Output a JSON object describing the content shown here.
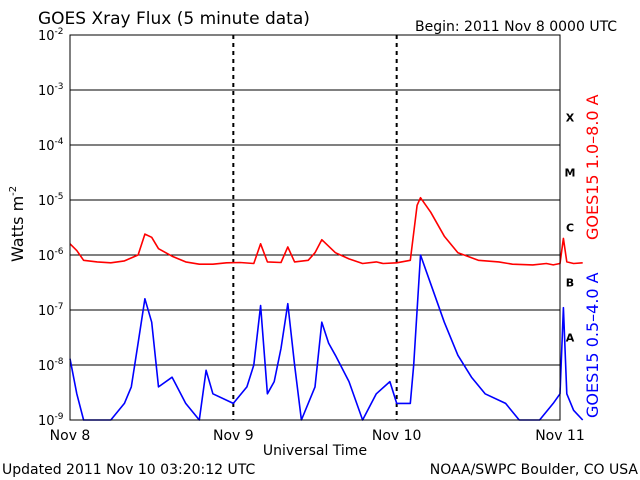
{
  "chart_data": {
    "type": "line",
    "title": "GOES Xray Flux (5 minute data)",
    "begin_label": "Begin:  2011 Nov 8 0000 UTC",
    "ylabel": "Watts m",
    "ylabel_exponent": "-2",
    "xlabel": "Universal Time",
    "y_scale": "log",
    "ylim": [
      1e-09,
      0.01
    ],
    "y_ticks": [
      {
        "mantissa": "10",
        "exponent": "-2",
        "value": 0.01
      },
      {
        "mantissa": "10",
        "exponent": "-3",
        "value": 0.001
      },
      {
        "mantissa": "10",
        "exponent": "-4",
        "value": 0.0001
      },
      {
        "mantissa": "10",
        "exponent": "-5",
        "value": 1e-05
      },
      {
        "mantissa": "10",
        "exponent": "-6",
        "value": 1e-06
      },
      {
        "mantissa": "10",
        "exponent": "-7",
        "value": 1e-07
      },
      {
        "mantissa": "10",
        "exponent": "-8",
        "value": 1e-08
      },
      {
        "mantissa": "10",
        "exponent": "-9",
        "value": 1e-09
      }
    ],
    "xlim": [
      "2011-11-08 00:00",
      "2011-11-11 00:00"
    ],
    "x_ticks": [
      {
        "label": "Nov 8",
        "date": "2011-11-08 00:00"
      },
      {
        "label": "Nov 9",
        "date": "2011-11-09 00:00"
      },
      {
        "label": "Nov 10",
        "date": "2011-11-10 00:00"
      },
      {
        "label": "Nov 11",
        "date": "2011-11-11 00:00"
      }
    ],
    "flare_classes": [
      {
        "label": "X",
        "value": 0.000316
      },
      {
        "label": "M",
        "value": 3.16e-05
      },
      {
        "label": "C",
        "value": 3.16e-06
      },
      {
        "label": "B",
        "value": 3.16e-07
      },
      {
        "label": "A",
        "value": 3.16e-08
      }
    ],
    "series": [
      {
        "name": "GOES15 1.0–8.0 A",
        "color": "#ff0000",
        "points": [
          [
            "2011-11-08 00:00",
            1.6e-06
          ],
          [
            "2011-11-08 01:00",
            1.2e-06
          ],
          [
            "2011-11-08 02:00",
            8e-07
          ],
          [
            "2011-11-08 04:00",
            7.5e-07
          ],
          [
            "2011-11-08 06:00",
            7.2e-07
          ],
          [
            "2011-11-08 08:00",
            7.8e-07
          ],
          [
            "2011-11-08 10:00",
            1e-06
          ],
          [
            "2011-11-08 11:00",
            2.4e-06
          ],
          [
            "2011-11-08 12:00",
            2.1e-06
          ],
          [
            "2011-11-08 13:00",
            1.3e-06
          ],
          [
            "2011-11-08 15:00",
            9.5e-07
          ],
          [
            "2011-11-08 17:00",
            7.5e-07
          ],
          [
            "2011-11-08 19:00",
            6.8e-07
          ],
          [
            "2011-11-08 21:00",
            6.8e-07
          ],
          [
            "2011-11-08 23:00",
            7.2e-07
          ],
          [
            "2011-11-09 01:00",
            7.3e-07
          ],
          [
            "2011-11-09 03:00",
            7e-07
          ],
          [
            "2011-11-09 04:00",
            1.6e-06
          ],
          [
            "2011-11-09 05:00",
            7.5e-07
          ],
          [
            "2011-11-09 07:00",
            7.3e-07
          ],
          [
            "2011-11-09 08:00",
            1.4e-06
          ],
          [
            "2011-11-09 09:00",
            7.5e-07
          ],
          [
            "2011-11-09 11:00",
            8e-07
          ],
          [
            "2011-11-09 12:00",
            1.1e-06
          ],
          [
            "2011-11-09 13:00",
            1.9e-06
          ],
          [
            "2011-11-09 15:00",
            1.1e-06
          ],
          [
            "2011-11-09 17:00",
            8.5e-07
          ],
          [
            "2011-11-09 19:00",
            7e-07
          ],
          [
            "2011-11-09 21:00",
            7.5e-07
          ],
          [
            "2011-11-09 22:00",
            7e-07
          ],
          [
            "2011-11-10 00:00",
            7.2e-07
          ],
          [
            "2011-11-10 02:00",
            8e-07
          ],
          [
            "2011-11-10 03:00",
            8e-06
          ],
          [
            "2011-11-10 03:30",
            1.1e-05
          ],
          [
            "2011-11-10 05:00",
            6e-06
          ],
          [
            "2011-11-10 07:00",
            2.2e-06
          ],
          [
            "2011-11-10 09:00",
            1.1e-06
          ],
          [
            "2011-11-10 12:00",
            8e-07
          ],
          [
            "2011-11-10 15:00",
            7.5e-07
          ],
          [
            "2011-11-10 17:00",
            6.8e-07
          ],
          [
            "2011-11-10 20:00",
            6.6e-07
          ],
          [
            "2011-11-10 22:00",
            7e-07
          ],
          [
            "2011-11-10 23:00",
            6.6e-07
          ],
          [
            "2011-11-11 00:00",
            7e-07
          ],
          [
            "2011-11-11 00:30",
            2e-06
          ],
          [
            "2011-11-11 01:00",
            7.5e-07
          ],
          [
            "2011-11-11 02:00",
            7e-07
          ],
          [
            "2011-11-11 03:20",
            7.2e-07
          ]
        ]
      },
      {
        "name": "GOES15 0.5–4.0 A",
        "color": "#0000ff",
        "points": [
          [
            "2011-11-08 00:00",
            1.3e-08
          ],
          [
            "2011-11-08 01:00",
            3e-09
          ],
          [
            "2011-11-08 02:00",
            1e-09
          ],
          [
            "2011-11-08 04:00",
            1e-09
          ],
          [
            "2011-11-08 06:00",
            1e-09
          ],
          [
            "2011-11-08 08:00",
            2e-09
          ],
          [
            "2011-11-08 09:00",
            4e-09
          ],
          [
            "2011-11-08 10:00",
            2.5e-08
          ],
          [
            "2011-11-08 11:00",
            1.6e-07
          ],
          [
            "2011-11-08 12:00",
            6e-08
          ],
          [
            "2011-11-08 13:00",
            4e-09
          ],
          [
            "2011-11-08 15:00",
            6e-09
          ],
          [
            "2011-11-08 17:00",
            2e-09
          ],
          [
            "2011-11-08 19:00",
            1e-09
          ],
          [
            "2011-11-08 20:00",
            8e-09
          ],
          [
            "2011-11-08 21:00",
            3e-09
          ],
          [
            "2011-11-09 00:00",
            2e-09
          ],
          [
            "2011-11-09 02:00",
            4e-09
          ],
          [
            "2011-11-09 03:00",
            1e-08
          ],
          [
            "2011-11-09 04:00",
            1.2e-07
          ],
          [
            "2011-11-09 05:00",
            3e-09
          ],
          [
            "2011-11-09 06:00",
            5e-09
          ],
          [
            "2011-11-09 07:00",
            2e-08
          ],
          [
            "2011-11-09 08:00",
            1.3e-07
          ],
          [
            "2011-11-09 09:00",
            1e-08
          ],
          [
            "2011-11-09 10:00",
            1e-09
          ],
          [
            "2011-11-09 12:00",
            4e-09
          ],
          [
            "2011-11-09 13:00",
            6e-08
          ],
          [
            "2011-11-09 14:00",
            2.5e-08
          ],
          [
            "2011-11-09 15:00",
            1.5e-08
          ],
          [
            "2011-11-09 17:00",
            5e-09
          ],
          [
            "2011-11-09 19:00",
            1e-09
          ],
          [
            "2011-11-09 21:00",
            3e-09
          ],
          [
            "2011-11-09 23:00",
            5e-09
          ],
          [
            "2011-11-10 00:00",
            2e-09
          ],
          [
            "2011-11-10 02:00",
            2e-09
          ],
          [
            "2011-11-10 02:30",
            1e-08
          ],
          [
            "2011-11-10 03:30",
            1e-06
          ],
          [
            "2011-11-10 05:00",
            3e-07
          ],
          [
            "2011-11-10 07:00",
            6e-08
          ],
          [
            "2011-11-10 09:00",
            1.5e-08
          ],
          [
            "2011-11-10 11:00",
            6e-09
          ],
          [
            "2011-11-10 13:00",
            3e-09
          ],
          [
            "2011-11-10 16:00",
            2e-09
          ],
          [
            "2011-11-10 18:00",
            1e-09
          ],
          [
            "2011-11-10 21:00",
            1e-09
          ],
          [
            "2011-11-10 23:00",
            2e-09
          ],
          [
            "2011-11-11 00:00",
            3e-09
          ],
          [
            "2011-11-11 00:30",
            1.1e-07
          ],
          [
            "2011-11-11 01:00",
            3e-09
          ],
          [
            "2011-11-11 02:00",
            1.5e-09
          ],
          [
            "2011-11-11 03:20",
            1e-09
          ]
        ]
      }
    ],
    "grid": true
  },
  "footer": {
    "updated": "Updated 2011 Nov 10 03:20:12 UTC",
    "source": "NOAA/SWPC Boulder, CO USA"
  }
}
